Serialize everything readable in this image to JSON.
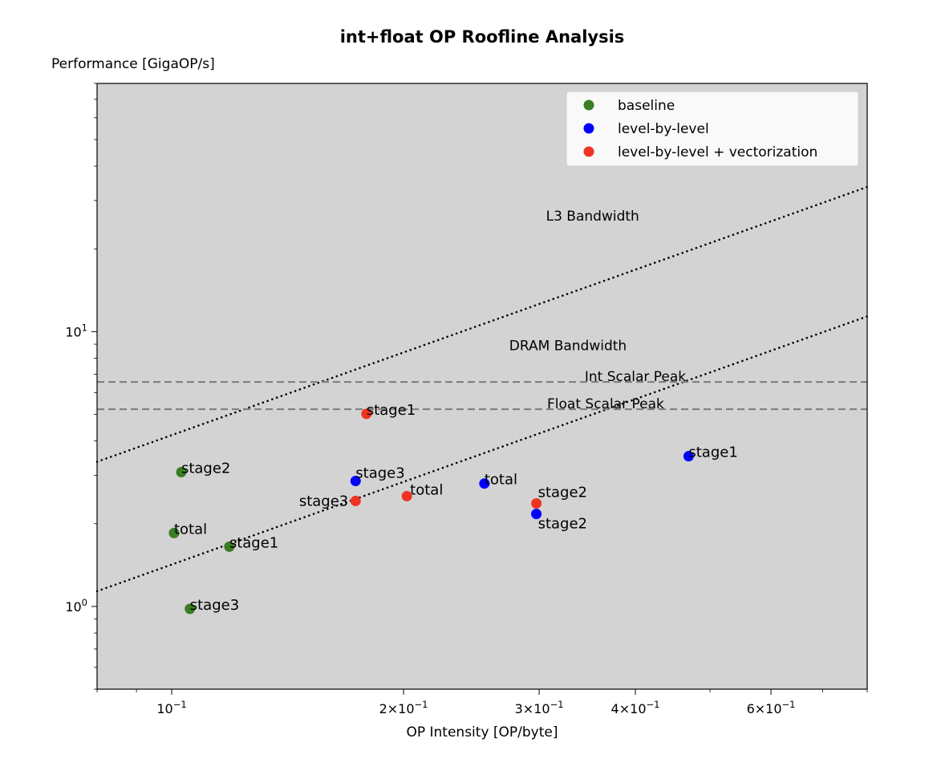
{
  "chart_data": {
    "type": "scatter",
    "title": "int+float OP Roofline Analysis",
    "xlabel": "OP Intensity [OP/byte]",
    "ylabel": "Performance [GigaOP/s]",
    "xscale": "log",
    "yscale": "log",
    "xlim": [
      0.08,
      0.8
    ],
    "ylim": [
      0.5,
      80
    ],
    "x_ticks": [
      {
        "value": 0.1,
        "base": "10",
        "exp": "−1",
        "mant": ""
      },
      {
        "value": 0.2,
        "base": "10",
        "exp": "−1",
        "mant": "2×"
      },
      {
        "value": 0.3,
        "base": "10",
        "exp": "−1",
        "mant": "3×"
      },
      {
        "value": 0.4,
        "base": "10",
        "exp": "−1",
        "mant": "4×"
      },
      {
        "value": 0.6,
        "base": "10",
        "exp": "−1",
        "mant": "6×"
      }
    ],
    "y_ticks": [
      {
        "value": 1,
        "base": "10",
        "exp": "0"
      },
      {
        "value": 10,
        "base": "10",
        "exp": "1"
      }
    ],
    "background": "#d3d3d3",
    "legend": {
      "placement": "top-right"
    },
    "series": [
      {
        "name": "baseline",
        "color": "#3a7d22",
        "points": [
          {
            "x": 0.1029,
            "y": 3.08,
            "label": "stage2"
          },
          {
            "x": 0.1007,
            "y": 1.85,
            "label": "total"
          },
          {
            "x": 0.1188,
            "y": 1.65,
            "label": "stage1"
          },
          {
            "x": 0.1056,
            "y": 0.98,
            "label": "stage3"
          }
        ]
      },
      {
        "name": "level-by-level",
        "color": "#0000ff",
        "points": [
          {
            "x": 0.1733,
            "y": 2.86,
            "label": "stage3"
          },
          {
            "x": 0.2547,
            "y": 2.8,
            "label": "total"
          },
          {
            "x": 0.2975,
            "y": 2.17,
            "label": "stage2"
          },
          {
            "x": 0.469,
            "y": 3.52,
            "label": "stage1"
          }
        ]
      },
      {
        "name": "level-by-level + vectorization",
        "color": "#ee3322",
        "points": [
          {
            "x": 0.179,
            "y": 5.02,
            "label": "stage1"
          },
          {
            "x": 0.1733,
            "y": 2.42,
            "label": "stage3"
          },
          {
            "x": 0.202,
            "y": 2.52,
            "label": "total"
          },
          {
            "x": 0.2975,
            "y": 2.37,
            "label": "stage2"
          }
        ]
      }
    ],
    "rooflines": [
      {
        "name": "L3 Bandwidth",
        "type": "bandwidth",
        "slope_gbps": 42.0,
        "label_at": {
          "x": 0.352,
          "y": 26.4
        }
      },
      {
        "name": "DRAM Bandwidth",
        "type": "bandwidth",
        "slope_gbps": 14.2,
        "label_at": {
          "x": 0.327,
          "y": 8.9
        }
      },
      {
        "name": "Int Scalar Peak",
        "type": "peak",
        "value": 6.56,
        "label_at": {
          "x": 0.4,
          "y": 6.56
        }
      },
      {
        "name": "Float Scalar Peak",
        "type": "peak",
        "value": 5.22,
        "label_at": {
          "x": 0.366,
          "y": 5.22
        }
      }
    ]
  }
}
